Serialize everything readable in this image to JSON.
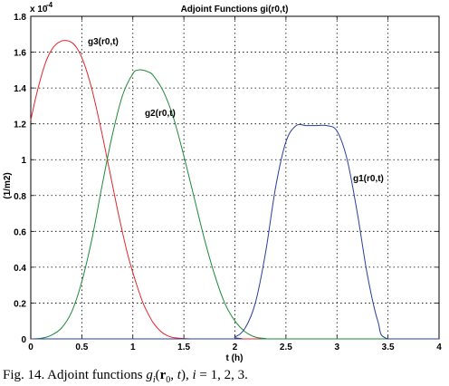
{
  "chart_data": {
    "type": "line",
    "title": "Adjoint Functions gi(r0,t)",
    "xlabel": "t  (h)",
    "ylabel": "(1/m2)",
    "y_exponent_base": "x 10",
    "y_exponent": "-4",
    "xlim": [
      0,
      4
    ],
    "ylim": [
      0,
      1.8
    ],
    "xticks": [
      "0",
      "0.5",
      "1",
      "1.5",
      "2",
      "2.5",
      "3",
      "3.5",
      "4"
    ],
    "yticks": [
      "0",
      "0.2",
      "0.4",
      "0.6",
      "0.8",
      "1",
      "1.2",
      "1.4",
      "1.6",
      "1.8"
    ],
    "grid": true,
    "series": [
      {
        "name": "g3(r0,t)",
        "color": "#e0282c",
        "x": [
          0,
          0.05,
          0.1,
          0.15,
          0.2,
          0.25,
          0.3,
          0.35,
          0.4,
          0.45,
          0.5,
          0.55,
          0.6,
          0.65,
          0.7,
          0.75,
          0.8,
          0.85,
          0.9,
          0.95,
          1.0,
          1.05,
          1.1,
          1.15,
          1.2,
          1.25,
          1.3,
          1.35,
          1.4,
          1.5,
          1.6,
          1.7,
          1.8,
          2.0,
          4.0
        ],
        "values": [
          1.22,
          1.35,
          1.46,
          1.55,
          1.61,
          1.645,
          1.662,
          1.665,
          1.655,
          1.625,
          1.57,
          1.49,
          1.39,
          1.27,
          1.14,
          1.0,
          0.86,
          0.72,
          0.59,
          0.47,
          0.37,
          0.28,
          0.2,
          0.14,
          0.09,
          0.055,
          0.03,
          0.015,
          0.007,
          0.002,
          0.0,
          0.0,
          0.0,
          0.0,
          0.0
        ]
      },
      {
        "name": "g2(r0,t)",
        "color": "#1e8a3a",
        "x": [
          0,
          0.1,
          0.2,
          0.3,
          0.4,
          0.5,
          0.6,
          0.7,
          0.8,
          0.9,
          1.0,
          1.05,
          1.1,
          1.15,
          1.2,
          1.3,
          1.4,
          1.5,
          1.6,
          1.7,
          1.8,
          1.9,
          2.0,
          2.1,
          2.2,
          2.3,
          2.4,
          4.0
        ],
        "values": [
          0.0,
          0.003,
          0.02,
          0.06,
          0.15,
          0.32,
          0.56,
          0.86,
          1.14,
          1.36,
          1.48,
          1.5,
          1.5,
          1.49,
          1.47,
          1.38,
          1.23,
          1.02,
          0.79,
          0.56,
          0.36,
          0.2,
          0.1,
          0.04,
          0.01,
          0.002,
          0.0,
          0.0
        ]
      },
      {
        "name": "g1(r0,t)",
        "color": "#2a3f9c",
        "x": [
          0,
          1.9,
          2.0,
          2.1,
          2.2,
          2.3,
          2.4,
          2.5,
          2.6,
          2.7,
          2.8,
          2.9,
          3.0,
          3.1,
          3.2,
          3.3,
          3.4,
          3.5,
          4.0
        ],
        "values": [
          0.0,
          0.0,
          0.01,
          0.06,
          0.2,
          0.48,
          0.85,
          1.1,
          1.19,
          1.19,
          1.19,
          1.19,
          1.16,
          1.0,
          0.7,
          0.35,
          0.1,
          0.0,
          0.0
        ]
      }
    ],
    "annotations": [
      "g3(r0,t)",
      "g2(r0,t)",
      "g1(r0,t)"
    ]
  },
  "caption": {
    "prefix": "Fig. 14. Adjoint functions ",
    "g": "g",
    "sub_i": "i",
    "open": "(",
    "r": "r",
    "sub_0": "0",
    "middle": ", ",
    "t": "t",
    "close": "), ",
    "i": "i",
    "suffix": " = 1, 2, 3."
  }
}
